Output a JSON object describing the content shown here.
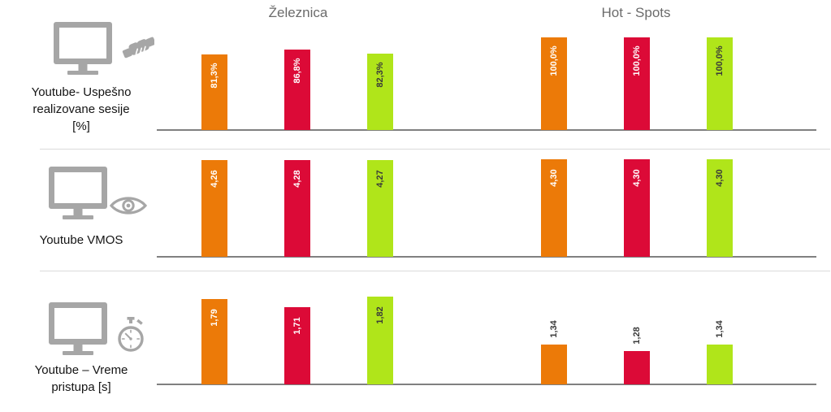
{
  "columns": [
    {
      "label": "Železnica"
    },
    {
      "label": "Hot - Spots"
    }
  ],
  "rows": [
    {
      "label": "Youtube- Uspešno realizovane sesije [%]",
      "label_lines": [
        "Youtube- Uspešno",
        "realizovane sesije",
        "[%]"
      ],
      "icon": "monitor-handshake-icon"
    },
    {
      "label": "Youtube VMOS",
      "label_lines": [
        "Youtube VMOS"
      ],
      "icon": "monitor-eye-icon"
    },
    {
      "label": "Youtube – Vreme pristupa [s]",
      "label_lines": [
        "Youtube – Vreme",
        "pristupa [s]"
      ],
      "icon": "monitor-stopwatch-icon"
    }
  ],
  "colors": {
    "orange": "#EC7A08",
    "red": "#DC0A37",
    "green": "#B0E51A",
    "icon_gray": "#A6A6A6",
    "axis": "#808080",
    "divider": "#DBDBDB",
    "header_text": "#6B6B6B",
    "label_dark": "#3A3A3A",
    "row_label_text": "#141414"
  },
  "chart_data": [
    {
      "type": "bar",
      "title": "Youtube- Uspešno realizovane sesije [%]",
      "categories": [
        "Železnica",
        "Hot - Spots"
      ],
      "series": [
        {
          "color": "orange",
          "values": [
            81.3,
            100.0
          ],
          "display": [
            "81,3%",
            "100,0%"
          ]
        },
        {
          "color": "red",
          "values": [
            86.8,
            100.0
          ],
          "display": [
            "86,8%",
            "100,0%"
          ]
        },
        {
          "color": "green",
          "values": [
            82.3,
            100.0
          ],
          "display": [
            "82,3%",
            "100,0%"
          ]
        }
      ],
      "ylim": [
        0,
        100
      ],
      "grid": false,
      "legend": "none",
      "value_label_rotation": 90
    },
    {
      "type": "bar",
      "title": "Youtube VMOS",
      "categories": [
        "Železnica",
        "Hot - Spots"
      ],
      "series": [
        {
          "color": "orange",
          "values": [
            4.26,
            4.3
          ],
          "display": [
            "4,26",
            "4,30"
          ]
        },
        {
          "color": "red",
          "values": [
            4.28,
            4.3
          ],
          "display": [
            "4,28",
            "4,30"
          ]
        },
        {
          "color": "green",
          "values": [
            4.27,
            4.3
          ],
          "display": [
            "4,27",
            "4,30"
          ]
        }
      ],
      "ylim": [
        0,
        4.3
      ],
      "grid": false,
      "legend": "none",
      "value_label_rotation": 90
    },
    {
      "type": "bar",
      "title": "Youtube – Vreme pristupa [s]",
      "categories": [
        "Železnica",
        "Hot - Spots"
      ],
      "series": [
        {
          "color": "orange",
          "values": [
            1.79,
            1.34
          ],
          "display": [
            "1,79",
            "1,34"
          ]
        },
        {
          "color": "red",
          "values": [
            1.71,
            1.28
          ],
          "display": [
            "1,71",
            "1,28"
          ]
        },
        {
          "color": "green",
          "values": [
            1.82,
            1.34
          ],
          "display": [
            "1,82",
            "1,34"
          ]
        }
      ],
      "ylim": [
        0.95,
        1.85
      ],
      "grid": false,
      "legend": "none",
      "value_label_rotation": 90
    }
  ]
}
